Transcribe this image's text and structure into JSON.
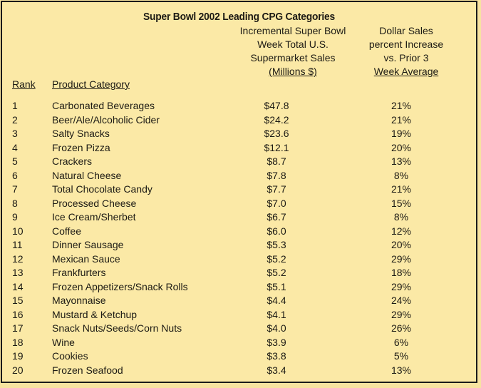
{
  "title": "Super Bowl 2002 Leading CPG Categories",
  "headers": {
    "rank": "Rank",
    "category": "Product Category",
    "sales_lines": [
      "Incremental Super Bowl",
      "Week Total U.S.",
      "Supermarket Sales",
      "(Millions $)"
    ],
    "pct_lines": [
      "Dollar Sales",
      "percent Increase",
      "vs. Prior 3",
      "Week Average"
    ]
  },
  "rows": [
    {
      "rank": "1",
      "category": "Carbonated Beverages",
      "sales": "$47.8",
      "pct": "21%"
    },
    {
      "rank": "2",
      "category": "Beer/Ale/Alcoholic Cider",
      "sales": "$24.2",
      "pct": "21%"
    },
    {
      "rank": "3",
      "category": "Salty Snacks",
      "sales": "$23.6",
      "pct": "19%"
    },
    {
      "rank": "4",
      "category": "Frozen Pizza",
      "sales": "$12.1",
      "pct": "20%"
    },
    {
      "rank": "5",
      "category": "Crackers",
      "sales": "$8.7",
      "pct": "13%"
    },
    {
      "rank": "6",
      "category": "Natural Cheese",
      "sales": "$7.8",
      "pct": "8%"
    },
    {
      "rank": "7",
      "category": "Total Chocolate Candy",
      "sales": "$7.7",
      "pct": "21%"
    },
    {
      "rank": "8",
      "category": "Processed Cheese",
      "sales": "$7.0",
      "pct": "15%"
    },
    {
      "rank": "9",
      "category": "Ice Cream/Sherbet",
      "sales": "$6.7",
      "pct": "8%"
    },
    {
      "rank": "10",
      "category": "Coffee",
      "sales": "$6.0",
      "pct": "12%"
    },
    {
      "rank": "11",
      "category": "Dinner Sausage",
      "sales": "$5.3",
      "pct": "20%"
    },
    {
      "rank": "12",
      "category": "Mexican Sauce",
      "sales": "$5.2",
      "pct": "29%"
    },
    {
      "rank": "13",
      "category": "Frankfurters",
      "sales": "$5.2",
      "pct": "18%"
    },
    {
      "rank": "14",
      "category": "Frozen Appetizers/Snack Rolls",
      "sales": "$5.1",
      "pct": "29%"
    },
    {
      "rank": "15",
      "category": "Mayonnaise",
      "sales": "$4.4",
      "pct": "24%"
    },
    {
      "rank": "16",
      "category": "Mustard & Ketchup",
      "sales": "$4.1",
      "pct": "29%"
    },
    {
      "rank": "17",
      "category": "Snack Nuts/Seeds/Corn Nuts",
      "sales": "$4.0",
      "pct": "26%"
    },
    {
      "rank": "18",
      "category": "Wine",
      "sales": "$3.9",
      "pct": "6%"
    },
    {
      "rank": "19",
      "category": "Cookies",
      "sales": "$3.8",
      "pct": "5%"
    },
    {
      "rank": "20",
      "category": "Frozen Seafood",
      "sales": "$3.4",
      "pct": "13%"
    }
  ]
}
